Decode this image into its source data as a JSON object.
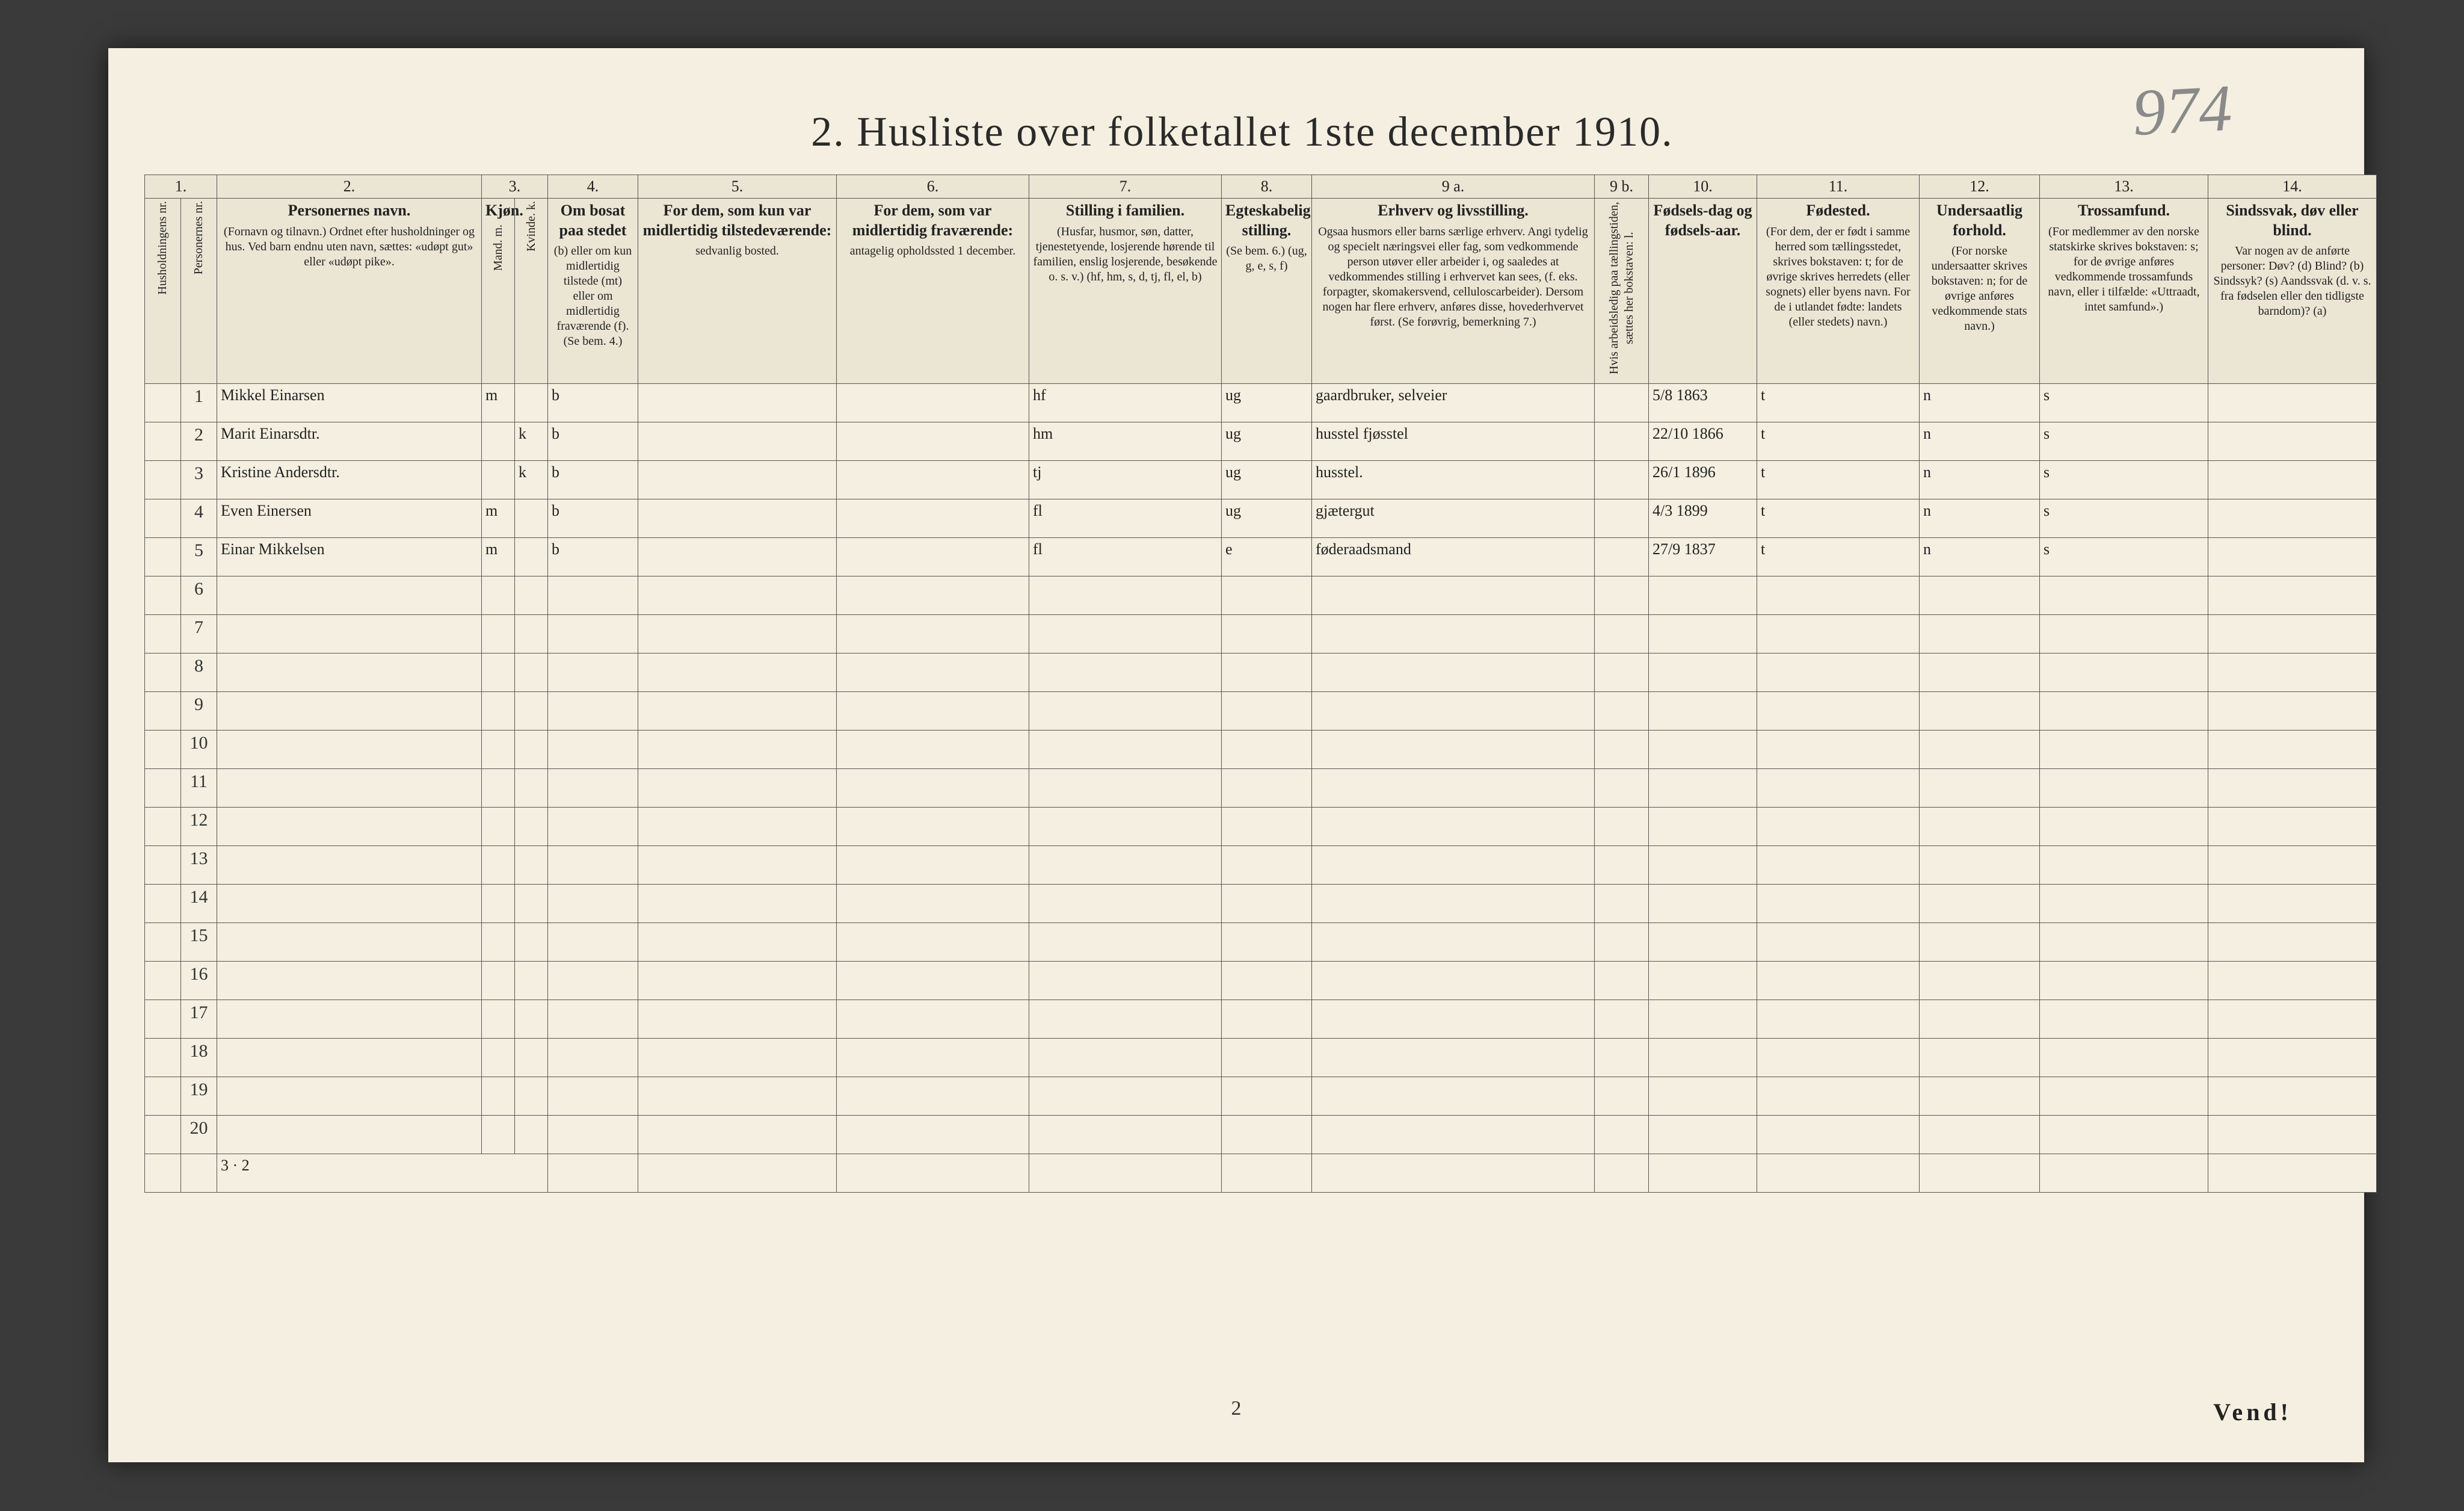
{
  "page_number_handwritten": "974",
  "title": "2.  Husliste over folketallet 1ste december 1910.",
  "footer_page_number": "2",
  "footer_vend": "Vend!",
  "footer_tally": "3 · 2",
  "column_numbers": [
    "1.",
    "",
    "2.",
    "3.",
    "4.",
    "5.",
    "6.",
    "7.",
    "8.",
    "9 a.",
    "9 b.",
    "10.",
    "11.",
    "12.",
    "13.",
    "14."
  ],
  "headers": {
    "c1": "Husholdningens nr.",
    "c2": "Personernes nr.",
    "c3_title": "Personernes navn.",
    "c3_body": "(Fornavn og tilnavn.)\nOrdnet efter husholdninger og hus.\nVed barn endnu uten navn, sættes: «udøpt gut» eller «udøpt pike».",
    "c4_title": "Kjøn.",
    "c4_body": "Mand.  m.",
    "c5_body": "Kvinde.  k.",
    "c6_title": "Om bosat paa stedet",
    "c6_body": "(b) eller om kun midlertidig tilstede (mt) eller om midlertidig fraværende (f). (Se bem. 4.)",
    "c7_title": "For dem, som kun var midlertidig tilstedeværende:",
    "c7_body": "sedvanlig bosted.",
    "c8_title": "For dem, som var midlertidig fraværende:",
    "c8_body": "antagelig opholdssted 1 december.",
    "c9_title": "Stilling i familien.",
    "c9_body": "(Husfar, husmor, søn, datter, tjenestetyende, losjerende hørende til familien, enslig losjerende, besøkende o. s. v.)\n(hf, hm, s, d, tj, fl, el, b)",
    "c10_title": "Egteskabelig stilling.",
    "c10_body": "(Se bem. 6.)\n(ug, g, e, s, f)",
    "c11_title": "Erhverv og livsstilling.",
    "c11_body": "Ogsaa husmors eller barns særlige erhverv. Angi tydelig og specielt næringsvei eller fag, som vedkommende person utøver eller arbeider i, og saaledes at vedkommendes stilling i erhvervet kan sees, (f. eks. forpagter, skomakersvend, celluloscarbeider). Dersom nogen har flere erhverv, anføres disse, hovederhvervet først. (Se forøvrig, bemerkning 7.)",
    "c12": "Hvis arbeidsledig paa tællingstiden, sættes her bokstaven: l.",
    "c13_title": "Fødsels-dag og fødsels-aar.",
    "c14_title": "Fødested.",
    "c14_body": "(For dem, der er født i samme herred som tællingsstedet, skrives bokstaven: t; for de øvrige skrives herredets (eller sognets) eller byens navn. For de i utlandet fødte: landets (eller stedets) navn.)",
    "c15_title": "Undersaatlig forhold.",
    "c15_body": "(For norske undersaatter skrives bokstaven: n; for de øvrige anføres vedkommende stats navn.)",
    "c16_title": "Trossamfund.",
    "c16_body": "(For medlemmer av den norske statskirke skrives bokstaven: s; for de øvrige anføres vedkommende trossamfunds navn, eller i tilfælde: «Uttraadt, intet samfund».)",
    "c17_title": "Sindssvak, døv eller blind.",
    "c17_body": "Var nogen av de anførte personer:\nDøv? (d)\nBlind? (b)\nSindssyk? (s)\nAandssvak (d. v. s. fra fødselen eller den tidligste barndom)? (a)"
  },
  "rows": [
    {
      "n": "1",
      "name": "Mikkel Einarsen",
      "sexM": "m",
      "sexK": "",
      "bosat": "b",
      "fam": "hf",
      "egte": "ug",
      "erhverv": "gaardbruker, selveier",
      "dob": "5/8 1863",
      "fsted": "t",
      "und": "n",
      "tros": "s"
    },
    {
      "n": "2",
      "name": "Marit Einarsdtr.",
      "sexM": "",
      "sexK": "k",
      "bosat": "b",
      "fam": "hm",
      "egte": "ug",
      "erhverv": "husstel  fjøsstel",
      "dob": "22/10 1866",
      "fsted": "t",
      "und": "n",
      "tros": "s"
    },
    {
      "n": "3",
      "name": "Kristine Andersdtr.",
      "sexM": "",
      "sexK": "k",
      "bosat": "b",
      "fam": "tj",
      "egte": "ug",
      "erhverv": "husstel.",
      "dob": "26/1 1896",
      "fsted": "t",
      "und": "n",
      "tros": "s"
    },
    {
      "n": "4",
      "name": "Even Einersen",
      "sexM": "m",
      "sexK": "",
      "bosat": "b",
      "fam": "fl",
      "egte": "ug",
      "erhverv": "gjætergut",
      "dob": "4/3 1899",
      "fsted": "t",
      "und": "n",
      "tros": "s"
    },
    {
      "n": "5",
      "name": "Einar Mikkelsen",
      "sexM": "m",
      "sexK": "",
      "bosat": "b",
      "fam": "fl",
      "egte": "e",
      "erhverv": "føderaadsmand",
      "dob": "27/9 1837",
      "fsted": "t",
      "und": "n",
      "tros": "s"
    }
  ],
  "empty_row_numbers": [
    "6",
    "7",
    "8",
    "9",
    "10",
    "11",
    "12",
    "13",
    "14",
    "15",
    "16",
    "17",
    "18",
    "19",
    "20"
  ]
}
